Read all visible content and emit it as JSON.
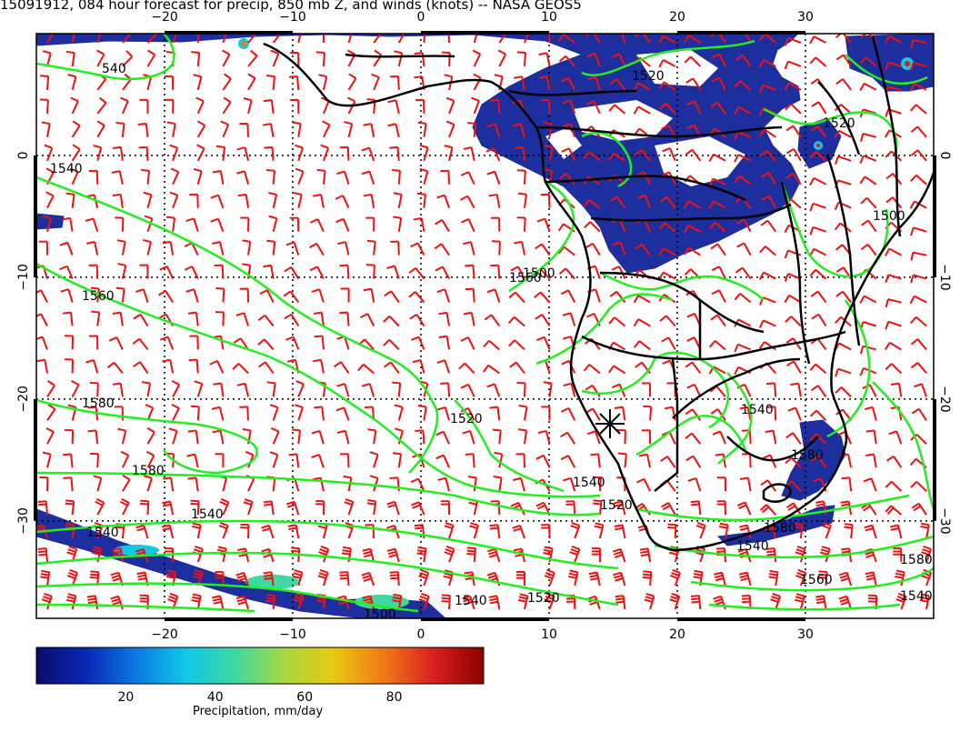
{
  "header": {
    "title": "15091912, 084 hour forecast for precip, 850 mb Z, and winds (knots) -- NASA GEOS5"
  },
  "map": {
    "lon_range": [
      -30,
      40
    ],
    "lat_range": [
      -38,
      10
    ],
    "x_ticks": [
      -20,
      -10,
      0,
      10,
      20,
      30
    ],
    "x_tick_labels": [
      "−20",
      "−10",
      "0",
      "10",
      "20",
      "30"
    ],
    "y_ticks": [
      0,
      -10,
      -20,
      -30
    ],
    "y_tick_labels": [
      "0",
      "−10",
      "−20",
      "−30"
    ],
    "contour_color": "#22ee22",
    "wind_barb_color": "#ee1111",
    "coastline_color": "#000000",
    "grid_style": "dotted",
    "contour_labels": [
      "540",
      "1520",
      "1520",
      "1500",
      "1500",
      "1540",
      "1560",
      "1580",
      "1580",
      "1540",
      "1540",
      "1500",
      "1520",
      "1540",
      "1580",
      "1580",
      "1540",
      "1540",
      "1540",
      "1520",
      "1540",
      "1560",
      "1520",
      "1580",
      "1560"
    ],
    "marker": "asterisk"
  },
  "colorbar": {
    "ticks": [
      20,
      40,
      60,
      80
    ],
    "range": [
      0,
      100
    ],
    "colors": [
      "#0b0b6e",
      "#0828b4",
      "#0b78e0",
      "#10c8e8",
      "#3fd8a0",
      "#a8d840",
      "#e8c810",
      "#f07818",
      "#d82020",
      "#8b0000"
    ],
    "label": "Precipitation, mm/day"
  },
  "precip_fill_color": "#1d2e9e"
}
